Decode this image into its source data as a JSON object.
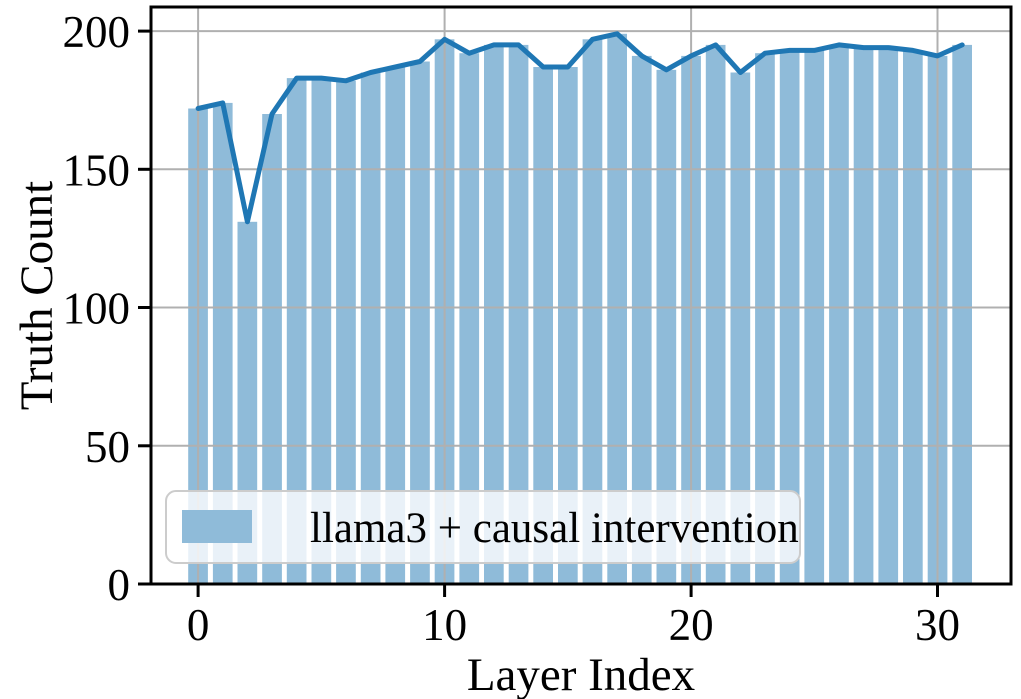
{
  "chart_data": {
    "type": "bar",
    "subtype": "bar-with-line-overlay",
    "title": "",
    "xlabel": "Layer Index",
    "ylabel": "Truth Count",
    "categories": [
      0,
      1,
      2,
      3,
      4,
      5,
      6,
      7,
      8,
      9,
      10,
      11,
      12,
      13,
      14,
      15,
      16,
      17,
      18,
      19,
      20,
      21,
      22,
      23,
      24,
      25,
      26,
      27,
      28,
      29,
      30,
      31
    ],
    "values": [
      172,
      174,
      131,
      170,
      183,
      183,
      182,
      185,
      187,
      189,
      197,
      192,
      195,
      195,
      187,
      187,
      197,
      199,
      191,
      186,
      191,
      195,
      185,
      192,
      193,
      193,
      195,
      194,
      194,
      193,
      191,
      195
    ],
    "line_overlay_follows_bar_values": true,
    "bar_width_data_units": 0.8,
    "xticks": [
      0,
      10,
      20,
      30
    ],
    "yticks": [
      0,
      50,
      100,
      150,
      200
    ],
    "xlim": [
      -1.91,
      32.98
    ],
    "ylim": [
      0,
      208.7
    ],
    "grid": true,
    "legend": {
      "label": "llama3 + causal intervention",
      "position": "lower left"
    },
    "colors": {
      "bar": "#8fbbd9",
      "line": "#1f77b4",
      "grid": "#b0b0b0",
      "spine": "#000000",
      "legend_bg": "rgba(255,255,255,0.8)",
      "legend_border": "#cccccc"
    }
  }
}
